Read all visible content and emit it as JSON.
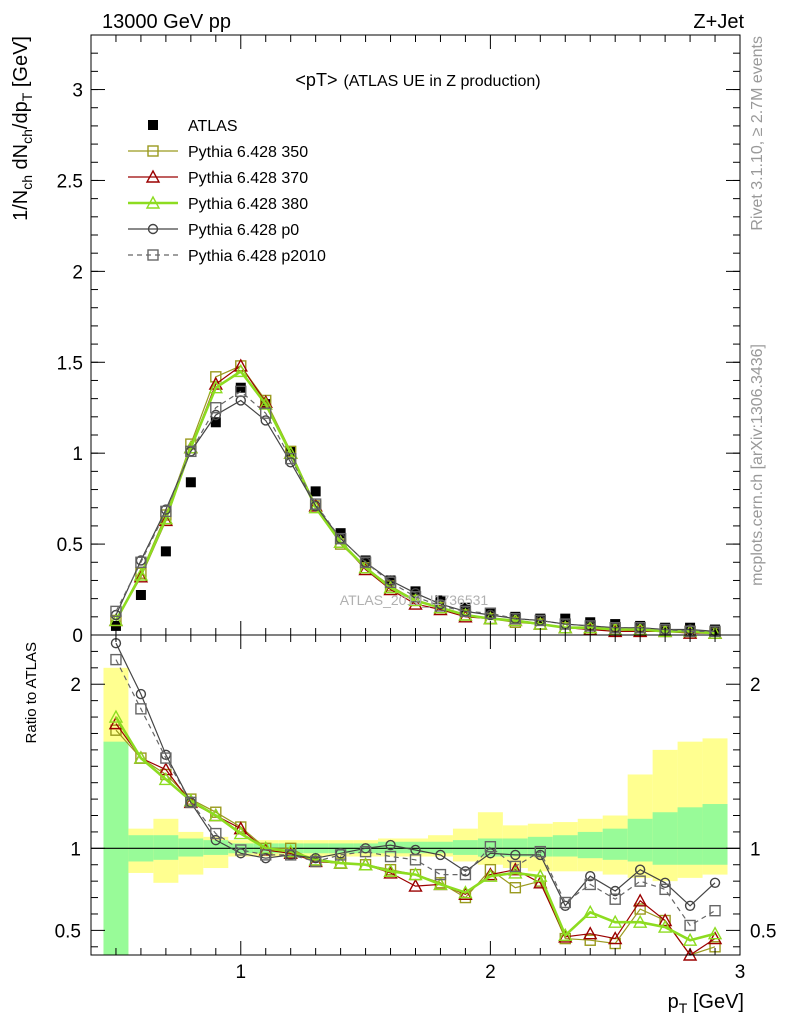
{
  "header": {
    "left": "13000 GeV pp",
    "right": "Z+Jet"
  },
  "side_text": {
    "top": "Rivet 3.1.10, ≥ 2.7M events",
    "bottom": "mcplots.cern.ch [arXiv:1306.3436]"
  },
  "chart_data": [
    {
      "type": "line",
      "title_main": "<pT>",
      "title_sub": "(ATLAS UE in Z production)",
      "watermark": "ATLAS_2019_I1736531",
      "ylabel": "1/N_ch dN_ch/dp_T [GeV]",
      "xlabel": "p_T [GeV]",
      "xlim": [
        0.4,
        3.0
      ],
      "ylim": [
        0,
        3.3
      ],
      "y_ticks": [
        "0",
        "0.5",
        "1",
        "1.5",
        "2",
        "2.5",
        "3"
      ],
      "x": [
        0.5,
        0.6,
        0.7,
        0.8,
        0.9,
        1.0,
        1.1,
        1.2,
        1.3,
        1.4,
        1.5,
        1.6,
        1.7,
        1.8,
        1.9,
        2.0,
        2.1,
        2.2,
        2.3,
        2.4,
        2.5,
        2.6,
        2.7,
        2.8,
        2.9
      ],
      "legend_position": "top-left",
      "series": [
        {
          "name": "ATLAS",
          "color": "#000000",
          "marker": "filled-square",
          "style": "points",
          "values": [
            0.05,
            0.22,
            0.46,
            0.84,
            1.17,
            1.36,
            1.27,
            1.01,
            0.79,
            0.56,
            0.41,
            0.3,
            0.24,
            0.19,
            0.15,
            0.12,
            0.1,
            0.09,
            0.09,
            0.07,
            0.06,
            0.05,
            0.04,
            0.04,
            0.03
          ]
        },
        {
          "name": "Pythia 6.428 350",
          "color": "#9a9a1e",
          "marker": "open-square",
          "style": "solid",
          "values": [
            0.08,
            0.34,
            0.66,
            1.05,
            1.42,
            1.48,
            1.29,
            1.01,
            0.71,
            0.5,
            0.37,
            0.27,
            0.19,
            0.15,
            0.11,
            0.09,
            0.07,
            0.06,
            0.04,
            0.03,
            0.03,
            0.02,
            0.02,
            0.02,
            0.01
          ]
        },
        {
          "name": "Pythia 6.428 370",
          "color": "#9b0000",
          "marker": "open-triangle",
          "style": "solid",
          "values": [
            0.08,
            0.32,
            0.63,
            1.03,
            1.38,
            1.48,
            1.28,
            1.0,
            0.71,
            0.51,
            0.36,
            0.25,
            0.17,
            0.14,
            0.1,
            0.09,
            0.08,
            0.06,
            0.04,
            0.03,
            0.02,
            0.02,
            0.02,
            0.01,
            0.01
          ]
        },
        {
          "name": "Pythia 6.428 380",
          "color": "#8ddc20",
          "marker": "open-triangle",
          "style": "solid-thick",
          "values": [
            0.08,
            0.33,
            0.64,
            1.03,
            1.36,
            1.45,
            1.27,
            1.0,
            0.7,
            0.51,
            0.37,
            0.26,
            0.19,
            0.15,
            0.11,
            0.09,
            0.08,
            0.06,
            0.04,
            0.04,
            0.03,
            0.03,
            0.02,
            0.02,
            0.01
          ]
        },
        {
          "name": "Pythia 6.428 p0",
          "color": "#444444",
          "marker": "open-circle",
          "style": "solid",
          "values": [
            0.11,
            0.41,
            0.69,
            1.01,
            1.21,
            1.29,
            1.18,
            0.95,
            0.71,
            0.53,
            0.4,
            0.3,
            0.23,
            0.17,
            0.13,
            0.11,
            0.09,
            0.08,
            0.06,
            0.05,
            0.04,
            0.04,
            0.03,
            0.03,
            0.02
          ]
        },
        {
          "name": "Pythia 6.428 p2010",
          "color": "#666666",
          "marker": "open-square",
          "style": "dashed",
          "values": [
            0.13,
            0.4,
            0.68,
            1.01,
            1.25,
            1.34,
            1.22,
            0.97,
            0.72,
            0.53,
            0.4,
            0.29,
            0.21,
            0.16,
            0.13,
            0.12,
            0.09,
            0.08,
            0.06,
            0.05,
            0.04,
            0.04,
            0.03,
            0.02,
            0.02
          ]
        }
      ]
    },
    {
      "type": "line",
      "ylabel": "Ratio to ATLAS",
      "xlabel": "p_T [GeV]",
      "xlim": [
        0.4,
        3.0
      ],
      "ylim": [
        0.35,
        2.3
      ],
      "y_ticks": [
        "0.5",
        "1",
        "2"
      ],
      "x_ticks": [
        "1",
        "2",
        "3"
      ],
      "reference_line": 1,
      "x": [
        0.5,
        0.6,
        0.7,
        0.8,
        0.9,
        1.0,
        1.1,
        1.2,
        1.3,
        1.4,
        1.5,
        1.6,
        1.7,
        1.8,
        1.9,
        2.0,
        2.1,
        2.2,
        2.3,
        2.4,
        2.5,
        2.6,
        2.7,
        2.8,
        2.9
      ],
      "bands": {
        "bin_edges": [
          0.45,
          0.55,
          0.65,
          0.75,
          0.85,
          0.95,
          1.05,
          1.15,
          1.25,
          1.35,
          1.45,
          1.55,
          1.65,
          1.75,
          1.85,
          1.95,
          2.05,
          2.15,
          2.25,
          2.35,
          2.45,
          2.55,
          2.65,
          2.75,
          2.85,
          2.95
        ],
        "stat_color": "#98fb98",
        "syst_color": "#ffff90",
        "stat_low": [
          0.35,
          0.92,
          0.93,
          0.95,
          0.96,
          0.97,
          0.97,
          0.97,
          0.97,
          0.97,
          0.97,
          0.97,
          0.97,
          0.97,
          0.96,
          0.95,
          0.95,
          0.95,
          0.95,
          0.94,
          0.93,
          0.92,
          0.9,
          0.9,
          0.9
        ],
        "stat_high": [
          1.65,
          1.08,
          1.08,
          1.06,
          1.05,
          1.03,
          1.03,
          1.03,
          1.03,
          1.03,
          1.03,
          1.04,
          1.04,
          1.04,
          1.05,
          1.06,
          1.06,
          1.07,
          1.08,
          1.1,
          1.12,
          1.18,
          1.22,
          1.25,
          1.27
        ],
        "syst_low": [
          0.35,
          0.85,
          0.79,
          0.84,
          0.88,
          0.95,
          0.95,
          0.95,
          0.95,
          0.95,
          0.95,
          0.95,
          0.95,
          0.95,
          0.92,
          0.9,
          0.88,
          0.86,
          0.86,
          0.86,
          0.84,
          0.82,
          0.8,
          0.82,
          0.84
        ],
        "syst_high": [
          2.1,
          1.12,
          1.18,
          1.1,
          1.07,
          1.05,
          1.05,
          1.05,
          1.05,
          1.05,
          1.05,
          1.06,
          1.06,
          1.08,
          1.12,
          1.22,
          1.14,
          1.15,
          1.16,
          1.18,
          1.2,
          1.45,
          1.6,
          1.65,
          1.67
        ]
      },
      "series": [
        {
          "name": "Pythia 6.428 350",
          "color": "#9a9a1e",
          "marker": "open-square",
          "style": "solid",
          "values": [
            1.72,
            1.55,
            1.45,
            1.3,
            1.22,
            1.13,
            1.0,
            1.0,
            0.92,
            0.91,
            0.9,
            0.87,
            0.84,
            0.79,
            0.7,
            0.87,
            0.76,
            0.8,
            0.45,
            0.44,
            0.42,
            0.63,
            0.56,
            0.33,
            0.4
          ]
        },
        {
          "name": "Pythia 6.428 370",
          "color": "#9b0000",
          "marker": "open-triangle",
          "style": "solid",
          "values": [
            1.76,
            1.55,
            1.48,
            1.28,
            1.2,
            1.12,
            0.99,
            0.97,
            0.92,
            0.91,
            0.9,
            0.85,
            0.77,
            0.78,
            0.72,
            0.84,
            0.87,
            0.79,
            0.46,
            0.48,
            0.45,
            0.68,
            0.56,
            0.35,
            0.45
          ]
        },
        {
          "name": "Pythia 6.428 380",
          "color": "#8ddc20",
          "marker": "open-triangle",
          "style": "solid-thick",
          "values": [
            1.8,
            1.55,
            1.42,
            1.29,
            1.2,
            1.09,
            1.0,
            0.98,
            0.93,
            0.91,
            0.9,
            0.86,
            0.84,
            0.78,
            0.73,
            0.83,
            0.85,
            0.83,
            0.47,
            0.61,
            0.55,
            0.55,
            0.52,
            0.44,
            0.48
          ]
        },
        {
          "name": "Pythia 6.428 p0",
          "color": "#444444",
          "marker": "open-circle",
          "style": "solid",
          "values": [
            2.25,
            1.94,
            1.57,
            1.28,
            1.05,
            0.97,
            0.94,
            0.96,
            0.94,
            0.97,
            1.0,
            1.02,
            0.99,
            0.96,
            0.86,
            0.97,
            0.96,
            0.96,
            0.65,
            0.83,
            0.74,
            0.87,
            0.79,
            0.65,
            0.79
          ]
        },
        {
          "name": "Pythia 6.428 p2010",
          "color": "#666666",
          "marker": "open-square",
          "style": "dashed",
          "values": [
            2.15,
            1.85,
            1.55,
            1.28,
            1.09,
            0.99,
            0.96,
            0.96,
            0.92,
            0.96,
            0.98,
            0.95,
            0.93,
            0.84,
            0.84,
            1.01,
            0.89,
            0.98,
            0.67,
            0.78,
            0.69,
            0.8,
            0.75,
            0.53,
            0.62
          ]
        }
      ]
    }
  ]
}
